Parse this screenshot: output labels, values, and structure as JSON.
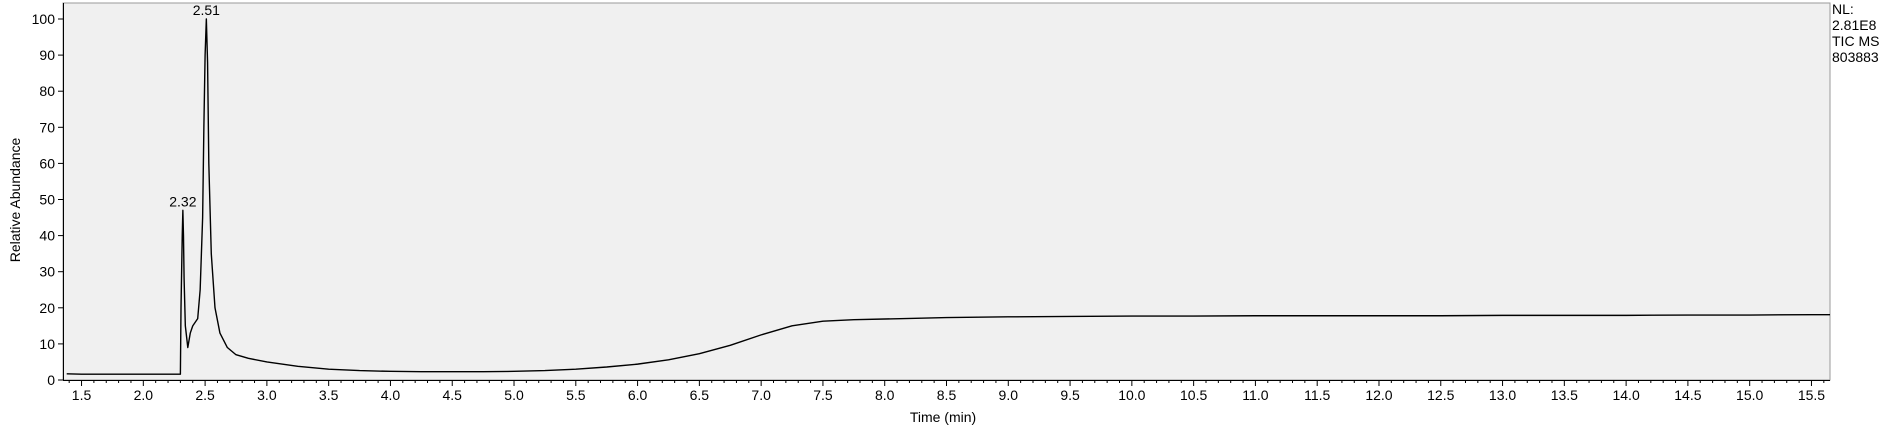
{
  "chart_data": {
    "type": "line",
    "xlabel": "Time (min)",
    "ylabel": "Relative Abundance",
    "xlim": [
      1.35,
      15.65
    ],
    "ylim": [
      0,
      100
    ],
    "x_ticks": [
      1.5,
      2.0,
      2.5,
      3.0,
      3.5,
      4.0,
      4.5,
      5.0,
      5.5,
      6.0,
      6.5,
      7.0,
      7.5,
      8.0,
      8.5,
      9.0,
      9.5,
      10.0,
      10.5,
      11.0,
      11.5,
      12.0,
      12.5,
      13.0,
      13.5,
      14.0,
      14.5,
      15.0,
      15.5
    ],
    "y_ticks": [
      0,
      10,
      20,
      30,
      40,
      50,
      60,
      70,
      80,
      90,
      100
    ],
    "grid": false,
    "background_color": "#f0f0f0",
    "line_color": "#000000",
    "peak_labels": [
      {
        "label": "2.32",
        "x": 2.32,
        "y": 47
      },
      {
        "label": "2.51",
        "x": 2.51,
        "y": 100
      }
    ],
    "info_text": [
      "NL:",
      "2.81E8",
      "TIC  MS",
      "803883"
    ],
    "series": [
      {
        "x": [
          1.38,
          1.5,
          1.8,
          2.1,
          2.3,
          2.305,
          2.315,
          2.32,
          2.325,
          2.33,
          2.34,
          2.36,
          2.38,
          2.4,
          2.42,
          2.44,
          2.46,
          2.48,
          2.49,
          2.5,
          2.51,
          2.52,
          2.53,
          2.55,
          2.58,
          2.62,
          2.68,
          2.75,
          2.85,
          3.0,
          3.25,
          3.5,
          3.75,
          4.0,
          4.25,
          4.5,
          4.75,
          5.0,
          5.25,
          5.5,
          5.75,
          6.0,
          6.25,
          6.5,
          6.75,
          7.0,
          7.25,
          7.5,
          7.75,
          8.0,
          8.25,
          8.5,
          8.75,
          9.0,
          9.5,
          10.0,
          10.5,
          11.0,
          11.5,
          12.0,
          12.5,
          13.0,
          13.5,
          14.0,
          14.5,
          15.0,
          15.5,
          15.65
        ],
        "y": [
          1.7,
          1.6,
          1.6,
          1.6,
          1.6,
          20,
          40,
          47,
          40,
          28,
          15,
          9,
          13,
          15,
          16,
          17,
          25,
          45,
          70,
          90,
          100,
          88,
          60,
          35,
          20,
          13,
          9,
          7,
          6,
          5,
          3.8,
          3.0,
          2.6,
          2.4,
          2.3,
          2.3,
          2.3,
          2.4,
          2.6,
          3.0,
          3.6,
          4.4,
          5.6,
          7.3,
          9.6,
          12.5,
          15.0,
          16.3,
          16.7,
          16.9,
          17.1,
          17.3,
          17.4,
          17.5,
          17.6,
          17.7,
          17.7,
          17.8,
          17.8,
          17.8,
          17.8,
          17.9,
          17.9,
          17.9,
          18.0,
          18.0,
          18.1,
          18.1
        ]
      }
    ]
  }
}
